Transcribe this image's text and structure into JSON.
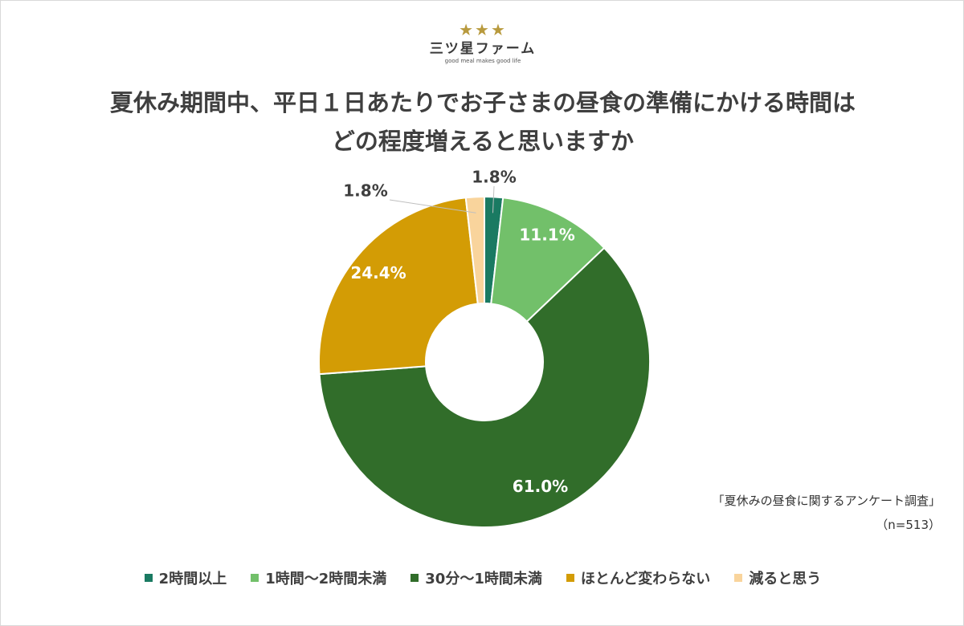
{
  "logo": {
    "stars": "★★★",
    "name": "三ツ星ファーム",
    "tagline": "good meal makes good life"
  },
  "title": {
    "line1": "夏休み期間中、平日１日あたりでお子さまの昼食の準備にかける時間は",
    "line2": "どの程度増えると思いますか"
  },
  "source": {
    "survey": "「夏休みの昼食に関するアンケート調査」",
    "sample": "（n=513）"
  },
  "chart_data": {
    "type": "pie",
    "donut": true,
    "categories": [
      "2時間以上",
      "1時間～2時間未満",
      "30分～1時間未満",
      "ほとんど変わらない",
      "減ると思う"
    ],
    "values": [
      1.8,
      11.1,
      61.0,
      24.4,
      1.8
    ],
    "labels": [
      "1.8%",
      "11.1%",
      "61.0%",
      "24.4%",
      "1.8%"
    ],
    "colors": [
      "#1a7a62",
      "#72c06a",
      "#316d2a",
      "#d39c05",
      "#f9d49c"
    ],
    "legend_position": "bottom"
  }
}
